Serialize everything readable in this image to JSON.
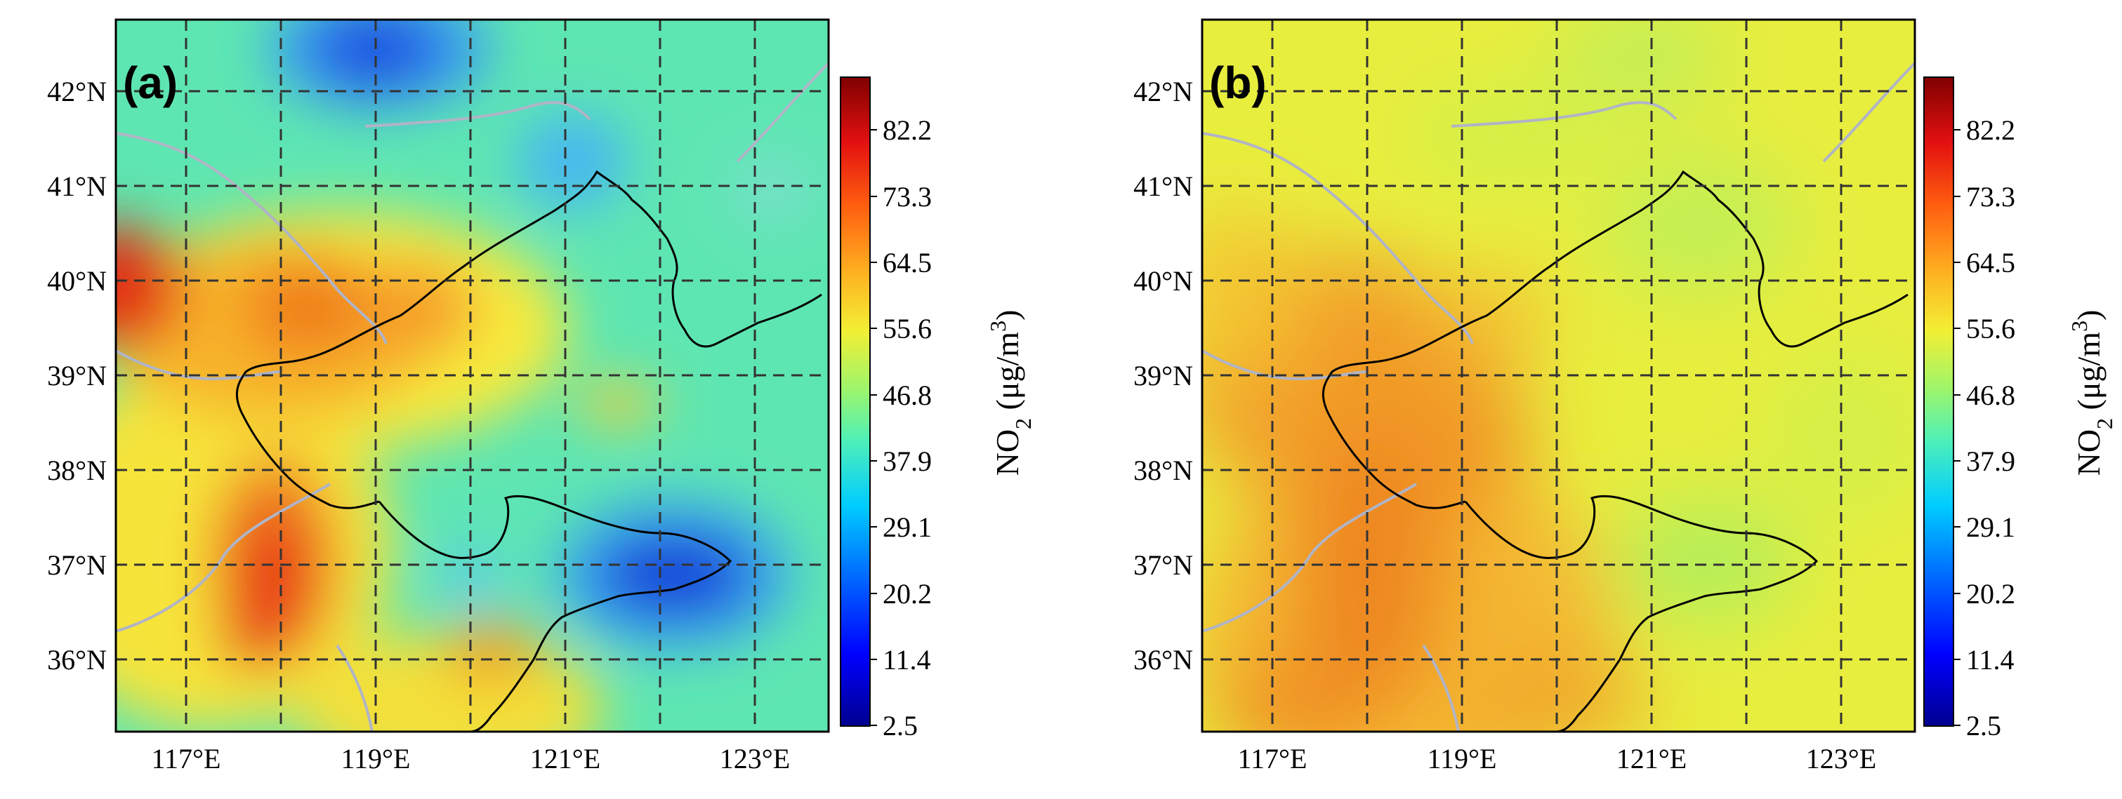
{
  "figure": {
    "panels": [
      {
        "label": "(a)",
        "lon_ticks": [
          "117°E",
          "119°E",
          "121°E",
          "123°E"
        ],
        "lat_ticks": [
          "42°N",
          "41°N",
          "40°N",
          "39°N",
          "38°N",
          "37°N",
          "36°N"
        ]
      },
      {
        "label": "(b)",
        "lon_ticks": [
          "117°E",
          "119°E",
          "121°E",
          "123°E"
        ],
        "lat_ticks": [
          "42°N",
          "41°N",
          "40°N",
          "39°N",
          "38°N",
          "37°N",
          "36°N"
        ]
      }
    ],
    "colorbar": {
      "ticks": [
        "82.2",
        "73.3",
        "64.5",
        "55.6",
        "46.8",
        "37.9",
        "29.1",
        "20.2",
        "11.4",
        "2.5"
      ],
      "label_main": "NO",
      "label_sub": "2",
      "label_unit": " (μg/m",
      "label_sup": "3",
      "label_close": ")",
      "min": 2.5,
      "max": 89.0
    }
  },
  "colors": {
    "jet_dark_blue": "#00008f",
    "jet_blue": "#0040ff",
    "jet_cyan": "#22d3e9",
    "jet_green": "#5cf0a0",
    "jet_yellow": "#f7f23a",
    "jet_orange": "#f08a1e",
    "jet_red": "#e8271a",
    "jet_dark_red": "#8a0000",
    "river": "#b0b4c6",
    "coast": "#000000",
    "grid": "#333333"
  }
}
